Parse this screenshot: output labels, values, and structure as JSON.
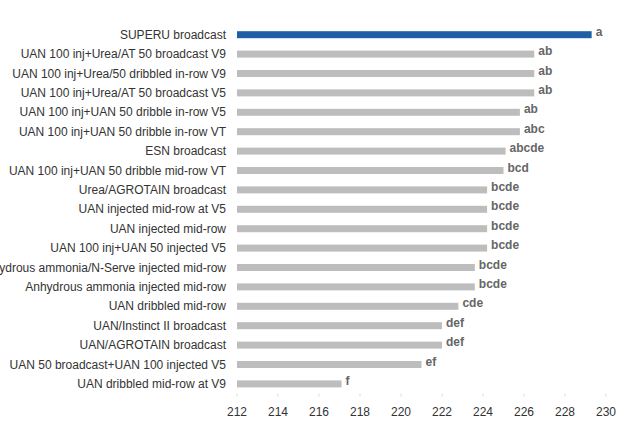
{
  "chart_data": {
    "type": "bar",
    "orientation": "horizontal",
    "categories": [
      "SUPERU broadcast",
      "UAN 100 inj+Urea/AT 50 broadcast V9",
      "UAN 100 inj+Urea/50 dribbled in-row V9",
      "UAN 100 inj+Urea/AT 50 broadcast V5",
      "UAN 100 inj+UAN 50 dribble in-row V5",
      "UAN 100 inj+UAN 50 dribble in-row VT",
      "ESN broadcast",
      "UAN 100 inj+UAN 50 dribble mid-row VT",
      "Urea/AGROTAIN broadcast",
      "UAN injected mid-row at V5",
      "UAN injected mid-row",
      "UAN 100 inj+UAN 50 injected V5",
      "Anhydrous ammonia/N-Serve injected mid-row",
      "Anhydrous ammonia injected mid-row",
      "UAN dribbled mid-row",
      "UAN/Instinct II broadcast",
      "UAN/AGROTAIN broadcast",
      "UAN 50 broadcast+UAN 100 injected V5",
      "UAN dribbled mid-row at V9"
    ],
    "values": [
      229.3,
      226.5,
      226.5,
      226.5,
      225.8,
      225.8,
      225.1,
      225.0,
      224.2,
      224.2,
      224.2,
      224.2,
      223.6,
      223.6,
      222.8,
      222.0,
      222.0,
      221.0,
      217.1
    ],
    "annotations": [
      "a",
      "ab",
      "ab",
      "ab",
      "ab",
      "abc",
      "abcde",
      "bcd",
      "bcde",
      "bcde",
      "bcde",
      "bcde",
      "bcde",
      "bcde",
      "cde",
      "def",
      "def",
      "ef",
      "f"
    ],
    "colors": [
      "#1f5fa8",
      "#bdbdbd",
      "#bdbdbd",
      "#bdbdbd",
      "#bdbdbd",
      "#bdbdbd",
      "#bdbdbd",
      "#bdbdbd",
      "#bdbdbd",
      "#bdbdbd",
      "#bdbdbd",
      "#bdbdbd",
      "#bdbdbd",
      "#bdbdbd",
      "#bdbdbd",
      "#bdbdbd",
      "#bdbdbd",
      "#bdbdbd",
      "#bdbdbd"
    ],
    "xlim": [
      212,
      230
    ],
    "xticks": [
      212,
      214,
      216,
      218,
      220,
      222,
      224,
      226,
      228,
      230
    ],
    "grid": false
  }
}
